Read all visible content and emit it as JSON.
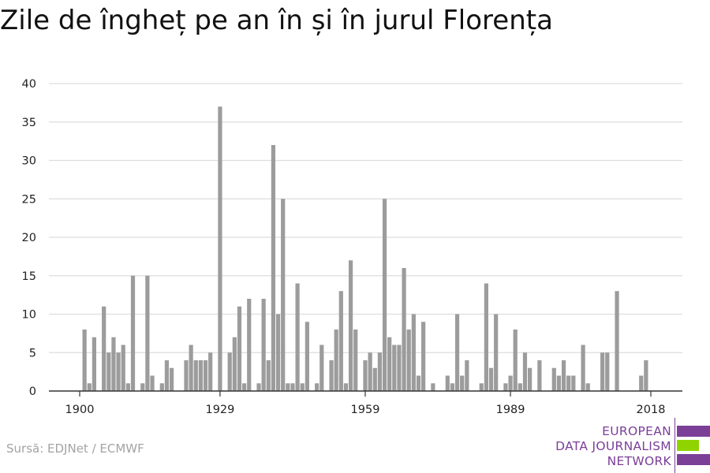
{
  "title": "Zile de îngheț pe an în și în jurul Florența",
  "source": "Sursă: EDJNet / ECMWF",
  "logo": {
    "line1": "EUROPEAN",
    "line2": "DATA JOURNALISM",
    "line3": "NETWORK"
  },
  "colors": {
    "bar": "#9c9c9c",
    "grid": "#dddddd",
    "axis": "#333333",
    "logo_purple": "#7b3f98",
    "logo_green": "#8fd400"
  },
  "chart_data": {
    "type": "bar",
    "title": "Zile de îngheț pe an în și în jurul Florența",
    "xlabel": "",
    "ylabel": "",
    "ylim": [
      0,
      40
    ],
    "yticks": [
      0,
      5,
      10,
      15,
      20,
      25,
      30,
      35,
      40
    ],
    "xticks": [
      1900,
      1929,
      1959,
      1989,
      2018
    ],
    "x": [
      1900,
      1901,
      1902,
      1903,
      1904,
      1905,
      1906,
      1907,
      1908,
      1909,
      1910,
      1911,
      1912,
      1913,
      1914,
      1915,
      1916,
      1917,
      1918,
      1919,
      1920,
      1921,
      1922,
      1923,
      1924,
      1925,
      1926,
      1927,
      1928,
      1929,
      1930,
      1931,
      1932,
      1933,
      1934,
      1935,
      1936,
      1937,
      1938,
      1939,
      1940,
      1941,
      1942,
      1943,
      1944,
      1945,
      1946,
      1947,
      1948,
      1949,
      1950,
      1951,
      1952,
      1953,
      1954,
      1955,
      1956,
      1957,
      1958,
      1959,
      1960,
      1961,
      1962,
      1963,
      1964,
      1965,
      1966,
      1967,
      1968,
      1969,
      1970,
      1971,
      1972,
      1973,
      1974,
      1975,
      1976,
      1977,
      1978,
      1979,
      1980,
      1981,
      1982,
      1983,
      1984,
      1985,
      1986,
      1987,
      1988,
      1989,
      1990,
      1991,
      1992,
      1993,
      1994,
      1995,
      1996,
      1997,
      1998,
      1999,
      2000,
      2001,
      2002,
      2003,
      2004,
      2005,
      2006,
      2007,
      2008,
      2009,
      2010,
      2011,
      2012,
      2013,
      2014,
      2015,
      2016,
      2017,
      2018
    ],
    "values": [
      0,
      8,
      1,
      7,
      0,
      11,
      5,
      7,
      5,
      6,
      1,
      15,
      0,
      1,
      15,
      2,
      0,
      1,
      4,
      3,
      0,
      0,
      4,
      6,
      4,
      4,
      4,
      5,
      0,
      37,
      0,
      5,
      7,
      11,
      1,
      12,
      0,
      1,
      12,
      4,
      32,
      10,
      25,
      1,
      1,
      14,
      1,
      9,
      0,
      1,
      6,
      0,
      4,
      8,
      13,
      1,
      17,
      8,
      0,
      4,
      5,
      3,
      5,
      25,
      7,
      6,
      6,
      16,
      8,
      10,
      2,
      9,
      0,
      1,
      0,
      0,
      2,
      1,
      10,
      2,
      4,
      0,
      0,
      1,
      14,
      3,
      10,
      0,
      1,
      2,
      8,
      1,
      5,
      3,
      0,
      4,
      0,
      0,
      3,
      2,
      4,
      2,
      2,
      0,
      6,
      1,
      0,
      0,
      5,
      5,
      0,
      13,
      0,
      0,
      0,
      0,
      2,
      4,
      0
    ]
  }
}
